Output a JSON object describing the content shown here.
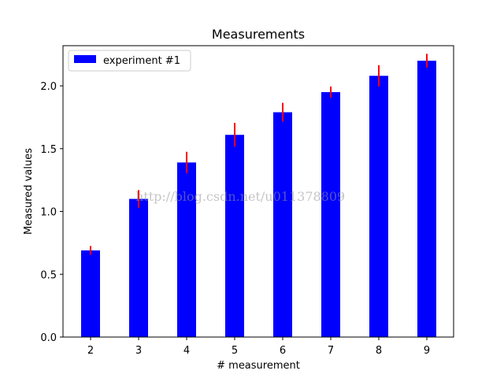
{
  "chart_data": {
    "type": "bar",
    "title": "Measurements",
    "xlabel": "# measurement",
    "ylabel": "Measured values",
    "categories": [
      "2",
      "3",
      "4",
      "5",
      "6",
      "7",
      "8",
      "9"
    ],
    "series": [
      {
        "name": "experiment #1",
        "values": [
          0.69,
          1.1,
          1.39,
          1.61,
          1.79,
          1.95,
          2.08,
          2.2
        ],
        "errors": [
          0.035,
          0.07,
          0.085,
          0.095,
          0.075,
          0.045,
          0.085,
          0.055
        ],
        "color": "#0000ff",
        "error_color": "#ff0000"
      }
    ],
    "ylim": [
      0,
      2.32
    ],
    "yticks": [
      0.0,
      0.5,
      1.0,
      1.5,
      2.0
    ],
    "ytick_labels": [
      "0.0",
      "0.5",
      "1.0",
      "1.5",
      "2.0"
    ],
    "legend_placement": "top-left",
    "grid": false
  },
  "watermark": "http://blog.csdn.net/u011378809"
}
